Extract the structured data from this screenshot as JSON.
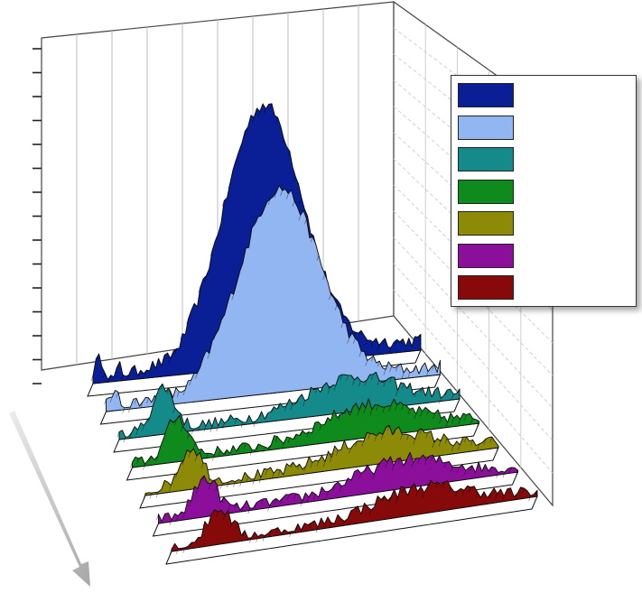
{
  "chart_data": {
    "type": "area",
    "projection": "3d-waterfall",
    "grid": true,
    "legend_placement": "top-right",
    "series": [
      {
        "color": "#0a1e96",
        "peak": 1.0
      },
      {
        "color": "#92b6f2",
        "peak": 0.78
      },
      {
        "color": "#148a8a",
        "peak": 0.07
      },
      {
        "color": "#0f8a1c",
        "peak": 0.06
      },
      {
        "color": "#8c8a06",
        "peak": 0.05
      },
      {
        "color": "#8c0f9c",
        "peak": 0.045
      },
      {
        "color": "#860a0a",
        "peak": 0.04
      }
    ]
  },
  "icons": {
    "depth_arrow": "diagonal-arrow-icon"
  }
}
